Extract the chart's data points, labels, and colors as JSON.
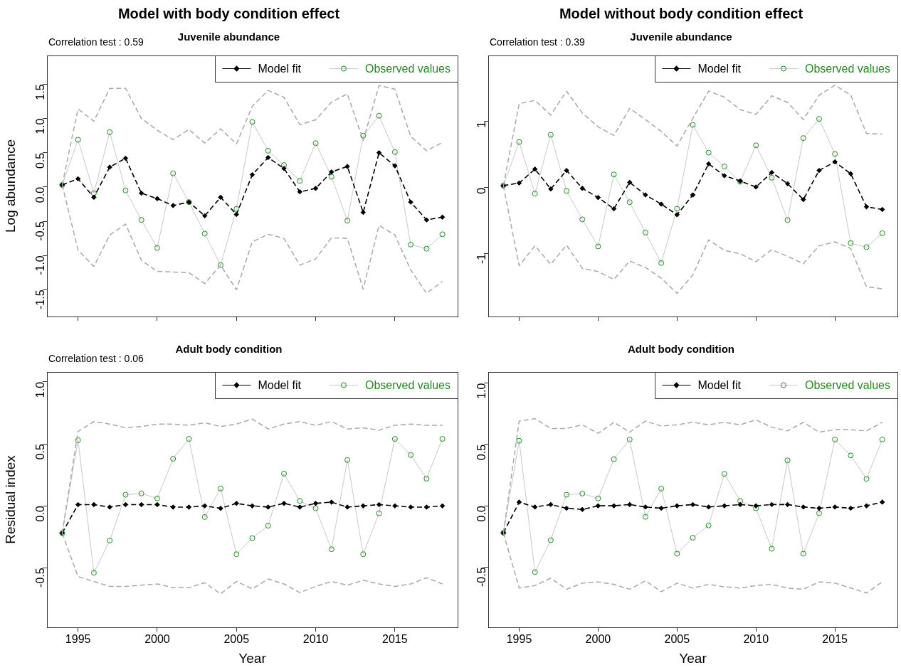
{
  "chart_data": [
    {
      "type": "line",
      "title": "Model with body condition effect",
      "subtitle": "Juvenile abundance",
      "ylabel": "Log abundance",
      "annotations": [
        "Correlation test : 0.59"
      ],
      "legend": "top right",
      "tick_labels": "y",
      "x": [
        1994,
        1995,
        1996,
        1997,
        1998,
        1999,
        2000,
        2001,
        2002,
        2003,
        2004,
        2005,
        2006,
        2007,
        2008,
        2009,
        2010,
        2011,
        2012,
        2013,
        2014,
        2015,
        2016,
        2017,
        2018
      ],
      "xlim": [
        1993.04,
        2018.96
      ],
      "xticks": [
        1995,
        2000,
        2005,
        2010,
        2015
      ],
      "ylim": [
        -1.89,
        1.92
      ],
      "yticks": [
        -1.5,
        {
          "value": -1,
          "label": "-1.0"
        },
        -0.5,
        {
          "value": 0,
          "label": "0.0"
        },
        0.5,
        {
          "value": 1,
          "label": "1.0"
        },
        1.5
      ],
      "series": [
        {
          "color": "#a9a9a9",
          "marker": "none",
          "line_style": "dashed",
          "values": [
            0.03,
            1.14,
            0.96,
            1.44,
            1.44,
            1.0,
            0.83,
            0.69,
            0.84,
            0.64,
            0.85,
            0.63,
            1.18,
            1.41,
            1.31,
            0.91,
            0.98,
            1.24,
            1.36,
            0.68,
            1.48,
            1.43,
            0.74,
            0.53,
            0.65
          ]
        },
        {
          "color": "#a9a9a9",
          "marker": "none",
          "line_style": "dashed",
          "values": [
            0.03,
            -0.92,
            -1.16,
            -0.7,
            -0.54,
            -1.07,
            -1.23,
            -1.24,
            -1.25,
            -1.41,
            -1.14,
            -1.5,
            -0.8,
            -0.69,
            -0.75,
            -1.14,
            -1.05,
            -0.74,
            -0.75,
            -1.49,
            -0.56,
            -0.7,
            -1.21,
            -1.55,
            -1.38
          ]
        },
        {
          "name": "Model fit",
          "color": "#000000",
          "marker": "diamond",
          "line_style": "dashed",
          "values": [
            0.03,
            0.12,
            -0.15,
            0.29,
            0.42,
            -0.09,
            -0.17,
            -0.27,
            -0.22,
            -0.42,
            -0.15,
            -0.4,
            0.18,
            0.43,
            0.27,
            -0.07,
            -0.02,
            0.22,
            0.3,
            -0.37,
            0.5,
            0.31,
            -0.22,
            -0.48,
            -0.44
          ]
        },
        {
          "name": "Observed values",
          "color": "#228b22",
          "marker": "circle",
          "line_style": "solid",
          "values": [
            0.03,
            0.69,
            -0.09,
            0.8,
            -0.05,
            -0.48,
            -0.89,
            0.2,
            -0.22,
            -0.68,
            -1.14,
            -0.32,
            0.95,
            0.53,
            0.32,
            0.09,
            0.64,
            0.15,
            -0.49,
            0.75,
            1.04,
            0.51,
            -0.84,
            -0.9,
            -0.69
          ]
        }
      ]
    },
    {
      "type": "line",
      "title": "Model without body condition effect",
      "subtitle": "Juvenile abundance",
      "annotations": [
        "Correlation test : 0.39"
      ],
      "legend": "top right",
      "tick_labels": "y",
      "x": [
        1994,
        1995,
        1996,
        1997,
        1998,
        1999,
        2000,
        2001,
        2002,
        2003,
        2004,
        2005,
        2006,
        2007,
        2008,
        2009,
        2010,
        2011,
        2012,
        2013,
        2014,
        2015,
        2016,
        2017,
        2018
      ],
      "xlim": [
        1993.04,
        2018.96
      ],
      "xticks": [
        1995,
        2000,
        2005,
        2010,
        2015
      ],
      "ylim": [
        -1.95,
        2.0
      ],
      "yticks": [
        -1,
        0,
        1
      ],
      "series": [
        {
          "color": "#a9a9a9",
          "marker": "none",
          "line_style": "dashed",
          "values": [
            0.03,
            1.27,
            1.32,
            1.1,
            1.46,
            1.13,
            0.92,
            0.79,
            1.2,
            1.03,
            0.85,
            0.63,
            1.05,
            1.46,
            1.37,
            1.18,
            1.11,
            1.39,
            1.29,
            1.03,
            1.4,
            1.55,
            1.4,
            0.82,
            0.81
          ]
        },
        {
          "color": "#a9a9a9",
          "marker": "none",
          "line_style": "dashed",
          "values": [
            0.03,
            -1.18,
            -0.88,
            -1.16,
            -0.87,
            -1.22,
            -1.27,
            -1.39,
            -1.11,
            -1.21,
            -1.37,
            -1.6,
            -1.32,
            -0.79,
            -0.95,
            -1.0,
            -1.12,
            -0.94,
            -1.04,
            -1.15,
            -0.88,
            -0.82,
            -0.92,
            -1.5,
            -1.53
          ]
        },
        {
          "name": "Model fit",
          "color": "#000000",
          "marker": "diamond",
          "line_style": "dashed",
          "values": [
            0.03,
            0.07,
            0.28,
            -0.02,
            0.26,
            -0.01,
            -0.15,
            -0.32,
            0.08,
            -0.11,
            -0.25,
            -0.41,
            -0.11,
            0.36,
            0.18,
            0.1,
            0.01,
            0.23,
            0.06,
            -0.18,
            0.26,
            0.39,
            0.21,
            -0.29,
            -0.33
          ]
        },
        {
          "name": "Observed values",
          "color": "#228b22",
          "marker": "circle",
          "line_style": "solid",
          "values": [
            0.03,
            0.69,
            -0.09,
            0.8,
            -0.05,
            -0.48,
            -0.89,
            0.2,
            -0.22,
            -0.68,
            -1.14,
            -0.32,
            0.95,
            0.53,
            0.32,
            0.09,
            0.64,
            0.15,
            -0.49,
            0.75,
            1.04,
            0.51,
            -0.84,
            -0.9,
            -0.69
          ]
        }
      ]
    },
    {
      "type": "line",
      "title": "Adult body condition",
      "xlabel": "Year",
      "ylabel": "Residual index",
      "annotations": [
        "Correlation test : 0.06"
      ],
      "legend": "top right",
      "x": [
        1994,
        1995,
        1996,
        1997,
        1998,
        1999,
        2000,
        2001,
        2002,
        2003,
        2004,
        2005,
        2006,
        2007,
        2008,
        2009,
        2010,
        2011,
        2012,
        2013,
        2014,
        2015,
        2016,
        2017,
        2018
      ],
      "xlim": [
        1993.04,
        2018.96
      ],
      "xticks": [
        1995,
        2000,
        2005,
        2010,
        2015
      ],
      "ylim": [
        -0.98,
        1.08
      ],
      "yticks": [
        -0.5,
        {
          "value": 0,
          "label": "0.0"
        },
        0.5,
        {
          "value": 1,
          "label": "1.0"
        }
      ],
      "series": [
        {
          "color": "#a9a9a9",
          "marker": "none",
          "line_style": "dashed",
          "values": [
            -0.22,
            0.6,
            0.68,
            0.66,
            0.63,
            0.64,
            0.66,
            0.66,
            0.65,
            0.67,
            0.64,
            0.66,
            0.7,
            0.62,
            0.66,
            0.68,
            0.65,
            0.68,
            0.62,
            0.63,
            0.61,
            0.65,
            0.66,
            0.65,
            0.65
          ]
        },
        {
          "color": "#a9a9a9",
          "marker": "none",
          "line_style": "dashed",
          "values": [
            -0.22,
            -0.57,
            -0.61,
            -0.65,
            -0.65,
            -0.64,
            -0.63,
            -0.66,
            -0.66,
            -0.62,
            -0.71,
            -0.61,
            -0.67,
            -0.59,
            -0.63,
            -0.7,
            -0.65,
            -0.61,
            -0.64,
            -0.6,
            -0.63,
            -0.65,
            -0.63,
            -0.58,
            -0.63
          ]
        },
        {
          "name": "Model fit",
          "color": "#000000",
          "marker": "diamond",
          "line_style": "dashed",
          "values": [
            -0.22,
            0.01,
            0.01,
            -0.01,
            0.01,
            0.01,
            0.01,
            -0.01,
            -0.01,
            0.0,
            -0.02,
            0.02,
            0.0,
            -0.01,
            0.02,
            -0.01,
            0.02,
            0.03,
            -0.01,
            0.0,
            0.01,
            0.0,
            -0.01,
            -0.01,
            0.0
          ]
        },
        {
          "name": "Observed values",
          "color": "#228b22",
          "marker": "circle",
          "line_style": "solid",
          "values": [
            -0.22,
            0.53,
            -0.54,
            -0.28,
            0.09,
            0.1,
            0.06,
            0.38,
            0.54,
            -0.09,
            0.14,
            -0.39,
            -0.26,
            -0.16,
            0.26,
            0.04,
            -0.02,
            -0.35,
            0.37,
            -0.39,
            -0.06,
            0.54,
            0.41,
            0.22,
            0.54
          ]
        }
      ]
    },
    {
      "type": "line",
      "title": "Adult body condition",
      "xlabel": "Year",
      "legend": "top right",
      "x": [
        1994,
        1995,
        1996,
        1997,
        1998,
        1999,
        2000,
        2001,
        2002,
        2003,
        2004,
        2005,
        2006,
        2007,
        2008,
        2009,
        2010,
        2011,
        2012,
        2013,
        2014,
        2015,
        2016,
        2017,
        2018
      ],
      "xlim": [
        1993.04,
        2018.96
      ],
      "xticks": [
        1995,
        2000,
        2005,
        2010,
        2015
      ],
      "ylim": [
        -0.99,
        1.09
      ],
      "yticks": [
        -0.5,
        {
          "value": 0,
          "label": "0.0"
        },
        0.5,
        {
          "value": 1,
          "label": "1.0"
        }
      ],
      "series": [
        {
          "color": "#a9a9a9",
          "marker": "none",
          "line_style": "dashed",
          "values": [
            -0.22,
            0.69,
            0.71,
            0.63,
            0.63,
            0.66,
            0.59,
            0.68,
            0.6,
            0.69,
            0.65,
            0.66,
            0.68,
            0.66,
            0.68,
            0.66,
            0.7,
            0.64,
            0.61,
            0.68,
            0.6,
            0.62,
            0.62,
            0.61,
            0.68
          ]
        },
        {
          "color": "#a9a9a9",
          "marker": "none",
          "line_style": "dashed",
          "values": [
            -0.22,
            -0.67,
            -0.65,
            -0.59,
            -0.68,
            -0.63,
            -0.62,
            -0.64,
            -0.68,
            -0.61,
            -0.7,
            -0.63,
            -0.67,
            -0.64,
            -0.66,
            -0.67,
            -0.65,
            -0.64,
            -0.67,
            -0.68,
            -0.62,
            -0.63,
            -0.67,
            -0.71,
            -0.62
          ]
        },
        {
          "name": "Model fit",
          "color": "#000000",
          "marker": "diamond",
          "line_style": "dashed",
          "values": [
            -0.22,
            0.03,
            -0.01,
            0.01,
            -0.02,
            -0.03,
            0.0,
            0.0,
            0.01,
            -0.01,
            -0.02,
            0.0,
            0.01,
            -0.01,
            0.0,
            0.01,
            0.0,
            0.01,
            0.01,
            -0.01,
            -0.02,
            -0.01,
            -0.02,
            0.0,
            0.03
          ]
        },
        {
          "name": "Observed values",
          "color": "#228b22",
          "marker": "circle",
          "line_style": "solid",
          "values": [
            -0.22,
            0.53,
            -0.54,
            -0.28,
            0.09,
            0.1,
            0.06,
            0.38,
            0.54,
            -0.09,
            0.14,
            -0.39,
            -0.26,
            -0.16,
            0.26,
            0.04,
            -0.02,
            -0.35,
            0.37,
            -0.39,
            -0.06,
            0.54,
            0.41,
            0.22,
            0.54
          ]
        }
      ]
    }
  ]
}
